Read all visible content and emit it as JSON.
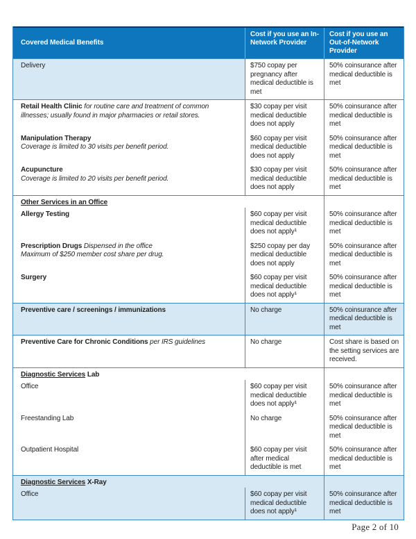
{
  "colors": {
    "header_bg": "#0e76bc",
    "header_top_border": "#16365f",
    "shaded_row": "#d5e8f4",
    "table_border": "#3d89c6",
    "header_text": "#ffffff",
    "body_text": "#222222"
  },
  "header": {
    "benefits": "Covered Medical Benefits",
    "in_network": "Cost if you use an In-\nNetwork Provider",
    "out_network": "Cost if you use an\nOut-of-Network\nProvider"
  },
  "bands": [
    {
      "shading": "col1",
      "entries": [
        {
          "name": "Delivery",
          "bold": false,
          "in": "$750 copay per\npregnancy after\nmedical deductible is\nmet",
          "out": "50% coinsurance after\nmedical deductible is\nmet"
        }
      ]
    },
    {
      "shading": "none",
      "entries": [
        {
          "name": "Retail Health Clinic",
          "bold": true,
          "inline_desc": "for routine care and treatment of common illnesses; usually found in major pharmacies or retail stores.",
          "in": "$30 copay per visit\nmedical deductible\ndoes not apply",
          "out": "50% coinsurance after\nmedical deductible is\nmet"
        },
        {
          "name": "Manipulation Therapy",
          "bold": true,
          "desc_line": "Coverage is limited to 30 visits per benefit period.",
          "in": "$60 copay per visit\nmedical deductible\ndoes not apply",
          "out": "50% coinsurance after\nmedical deductible is\nmet"
        },
        {
          "name": "Acupuncture",
          "bold": true,
          "desc_line": "Coverage is limited to 20 visits per benefit period.",
          "in": "$30 copay per visit\nmedical deductible\ndoes not apply",
          "out": "50% coinsurance after\nmedical deductible is\nmet"
        }
      ]
    },
    {
      "shading": "none",
      "section_underlined": "Other Services in an Office",
      "section_rest": "",
      "entries": [
        {
          "name": "Allergy Testing",
          "bold": true,
          "in": "$60 copay per visit\nmedical deductible\ndoes not apply¹",
          "out": "50% coinsurance after\nmedical deductible is\nmet"
        },
        {
          "name": "Prescription Drugs",
          "bold": true,
          "inline_desc": "Dispensed in the office",
          "desc_line": "Maximum of $250 member cost share per drug.",
          "in": "$250 copay per day\nmedical deductible\ndoes not apply",
          "out": "50% coinsurance after\nmedical deductible is\nmet"
        },
        {
          "name": "Surgery",
          "bold": true,
          "in": "$60 copay per visit\nmedical deductible\ndoes not apply¹",
          "out": "50% coinsurance after\nmedical deductible is\nmet"
        }
      ]
    },
    {
      "shading": "full",
      "entries": [
        {
          "name": "Preventive care / screenings / immunizations",
          "bold": true,
          "in": "No charge",
          "out": "50% coinsurance after\nmedical deductible is\nmet"
        }
      ]
    },
    {
      "shading": "none",
      "entries": [
        {
          "name": "Preventive Care for Chronic Conditions",
          "bold": true,
          "inline_desc": "per IRS guidelines",
          "in": "No charge",
          "out": "Cost share is based on\nthe setting services are\nreceived."
        }
      ]
    },
    {
      "shading": "none",
      "section_underlined": "Diagnostic Services",
      "section_rest": " Lab",
      "entries": [
        {
          "name": "Office",
          "bold": false,
          "in": "$60 copay per visit\nmedical deductible\ndoes not apply¹",
          "out": "50% coinsurance after\nmedical deductible is\nmet"
        },
        {
          "name": "Freestanding Lab",
          "bold": false,
          "in": "No charge",
          "out": "50% coinsurance after\nmedical deductible is\nmet"
        },
        {
          "name": "Outpatient Hospital",
          "bold": false,
          "in": "$60 copay per visit\nafter medical\ndeductible is met",
          "out": "50% coinsurance after\nmedical deductible is\nmet"
        }
      ]
    },
    {
      "shading": "full",
      "section_underlined": "Diagnostic Services",
      "section_rest": " X-Ray",
      "entries": [
        {
          "name": "Office",
          "bold": false,
          "in": "$60 copay per visit\nmedical deductible\ndoes not apply¹",
          "out": "50% coinsurance after\nmedical deductible is\nmet"
        }
      ]
    }
  ],
  "footer": {
    "page_label": "Page 2 of 10"
  }
}
